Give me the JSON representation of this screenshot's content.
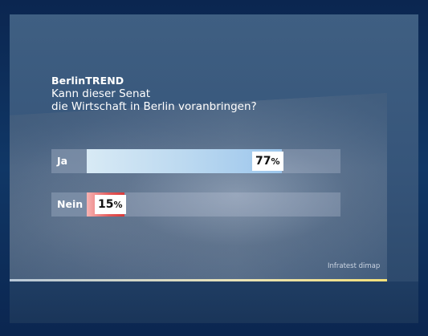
{
  "header": {
    "brand": "BerlinTREND",
    "question_line1": "Kann dieser Senat",
    "question_line2": "die Wirtschaft in Berlin voranbringen?"
  },
  "source": "Infratest dimap",
  "colors": {
    "ja_bar": "#a9cfee",
    "nein_bar": "#e45a5a",
    "background": "#36557a"
  },
  "chart_data": {
    "type": "bar",
    "orientation": "horizontal",
    "title": "Kann dieser Senat die Wirtschaft in Berlin voranbringen?",
    "categories": [
      "Ja",
      "Nein"
    ],
    "values": [
      77,
      15
    ],
    "value_labels": [
      "77",
      "15"
    ],
    "unit": "%",
    "xlim": [
      0,
      100
    ],
    "grid": false,
    "legend": "none"
  }
}
